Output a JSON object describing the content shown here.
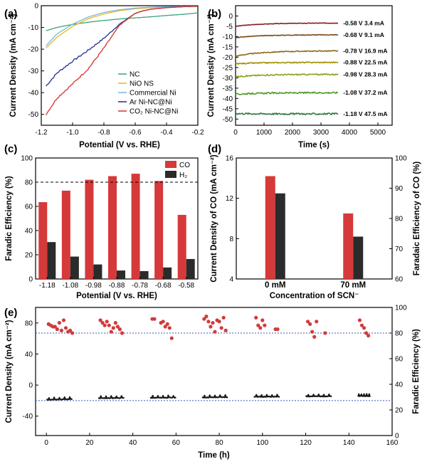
{
  "chart_data": [
    {
      "panel": "(a)",
      "type": "line",
      "xlabel": "Potential (V vs. RHE)",
      "ylabel": "Current Density (mA cm⁻²)",
      "xlim": [
        -1.2,
        -0.2
      ],
      "ylim": [
        -55,
        0
      ],
      "xticks": [
        "-1.2",
        "-1.0",
        "-0.8",
        "-0.6",
        "-0.4",
        "-0.2"
      ],
      "yticks": [
        "0",
        "-10",
        "-20",
        "-30",
        "-40",
        "-50"
      ],
      "legend_position": "bottom-right",
      "series": [
        {
          "name": "NC",
          "color": "#3aa37a",
          "x": [
            -1.17,
            -1.1,
            -1.0,
            -0.9,
            -0.8,
            -0.7,
            -0.6,
            -0.5,
            -0.4,
            -0.3,
            -0.2
          ],
          "y": [
            -11.5,
            -10.0,
            -8.6,
            -7.6,
            -6.8,
            -6.1,
            -5.6,
            -5.1,
            -4.5,
            -4.0,
            -3.3
          ]
        },
        {
          "name": "NiO NS",
          "color": "#e6b820",
          "x": [
            -1.17,
            -1.1,
            -1.0,
            -0.9,
            -0.8,
            -0.7,
            -0.6,
            -0.5,
            -0.4,
            -0.3,
            -0.2
          ],
          "y": [
            -19.5,
            -14.5,
            -9.5,
            -6.0,
            -3.8,
            -2.3,
            -1.4,
            -0.9,
            -0.6,
            -0.4,
            -0.3
          ]
        },
        {
          "name": "Commercial Ni",
          "color": "#7fb6d6",
          "x": [
            -1.17,
            -1.1,
            -1.0,
            -0.9,
            -0.8,
            -0.7,
            -0.6,
            -0.5,
            -0.4,
            -0.3,
            -0.2
          ],
          "y": [
            -18.5,
            -13.0,
            -8.5,
            -5.2,
            -3.1,
            -1.9,
            -1.1,
            -0.7,
            -0.4,
            -0.3,
            -0.2
          ]
        },
        {
          "name": "Ar Ni-NC@Ni",
          "color": "#1f2f8f",
          "x": [
            -1.17,
            -1.1,
            -1.0,
            -0.9,
            -0.8,
            -0.7,
            -0.6,
            -0.55,
            -0.5,
            -0.4,
            -0.3,
            -0.2
          ],
          "y": [
            -37.0,
            -31.0,
            -25.5,
            -20.5,
            -15.0,
            -8.5,
            -3.5,
            -2.4,
            -1.6,
            -0.9,
            -0.5,
            -0.3
          ]
        },
        {
          "name": "CO₂ Ni-NC@Ni",
          "color": "#d6312b",
          "x": [
            -1.17,
            -1.1,
            -1.0,
            -0.9,
            -0.8,
            -0.7,
            -0.6,
            -0.55,
            -0.5,
            -0.4,
            -0.3,
            -0.2
          ],
          "y": [
            -50.0,
            -42.5,
            -36.0,
            -29.0,
            -19.5,
            -9.0,
            -3.5,
            -2.3,
            -1.6,
            -0.9,
            -0.5,
            -0.3
          ]
        }
      ]
    },
    {
      "panel": "(b)",
      "type": "line",
      "xlabel": "Time (s)",
      "ylabel": "Current Density (mA cm⁻²)",
      "xlim": [
        0,
        5500
      ],
      "ylim": [
        -53,
        5
      ],
      "xticks": [
        "0",
        "1000",
        "2000",
        "3000",
        "4000",
        "5000"
      ],
      "yticks": [
        "0",
        "-5",
        "-10",
        "-15",
        "-20",
        "-25",
        "-30",
        "-35",
        "-40",
        "-45",
        "-50"
      ],
      "series": [
        {
          "name": "-0.58 V",
          "annotation": "-0.58 V  3.4 mA",
          "color": "#8a1c1c",
          "start": -5.0,
          "end": -3.4
        },
        {
          "name": "-0.68 V",
          "annotation": "-0.68 V  9.1 mA",
          "color": "#7a4a1e",
          "start": -10.5,
          "end": -9.1
        },
        {
          "name": "-0.78 V",
          "annotation": "-0.78 V  16.9 mA",
          "color": "#8a6a12",
          "start": -19.5,
          "end": -16.9
        },
        {
          "name": "-0.88 V",
          "annotation": "-0.88 V  22.5 mA",
          "color": "#a0900a",
          "start": -23.2,
          "end": -22.5
        },
        {
          "name": "-0.98 V",
          "annotation": "-0.98 V  28.3 mA",
          "color": "#8aa21e",
          "start": -29.5,
          "end": -28.3
        },
        {
          "name": "-1.08 V",
          "annotation": "-1.08 V  37.2 mA",
          "color": "#4f9a2a",
          "start": -38.0,
          "end": -37.2
        },
        {
          "name": "-1.18 V",
          "annotation": "-1.18 V  47.5 mA",
          "color": "#2e7a3e",
          "start": -47.3,
          "end": -47.5
        }
      ]
    },
    {
      "panel": "(c)",
      "type": "bar",
      "xlabel": "Potential (V vs. RHE)",
      "ylabel": "Faradic Efficiency (%)",
      "ylim": [
        0,
        100
      ],
      "yticks": [
        "0",
        "20",
        "40",
        "60",
        "80",
        "100"
      ],
      "categories": [
        "-1.18",
        "-1.08",
        "-0.98",
        "-0.88",
        "-0.78",
        "-0.68",
        "-0.58"
      ],
      "reference_line": 80,
      "legend_position": "top-right",
      "series": [
        {
          "name": "CO",
          "color": "#d6393a",
          "values": [
            63.5,
            73,
            82,
            85,
            87,
            81,
            53
          ]
        },
        {
          "name": "H₂",
          "color": "#2b2b2b",
          "values": [
            30.5,
            18.5,
            12,
            7,
            6.5,
            9.5,
            16.5
          ]
        }
      ]
    },
    {
      "panel": "(d)",
      "type": "bar",
      "xlabel": "Concentration of SCN⁻",
      "ylabel_left": "Current Density of CO (mA cm⁻²)",
      "ylabel_right": "Faradaic Efficiency of CO (%)",
      "ylim_left": [
        4,
        16
      ],
      "ylim_right": [
        60,
        100
      ],
      "yticks_left": [
        "4",
        "8",
        "12",
        "16"
      ],
      "yticks_right": [
        "60",
        "70",
        "80",
        "90",
        "100"
      ],
      "categories": [
        "0 mM",
        "70 mM"
      ],
      "series": [
        {
          "name": "Current Density of CO",
          "axis": "left",
          "color": "#d6393a",
          "values": [
            14.2,
            10.5
          ]
        },
        {
          "name": "Faradaic Efficiency of CO",
          "axis": "right",
          "color": "#2b2b2b",
          "values": [
            88.3,
            74.0
          ]
        }
      ]
    },
    {
      "panel": "(e)",
      "type": "scatter",
      "xlabel": "Time (h)",
      "ylabel_left": "Current Density (mA cm⁻²)",
      "ylabel_right": "Faradic Efficiency (%)",
      "xlim": [
        -5,
        160
      ],
      "ylim_left": [
        -65,
        100
      ],
      "ylim_right": [
        0,
        100
      ],
      "xticks": [
        "0",
        "20",
        "40",
        "60",
        "80",
        "100",
        "120",
        "140",
        "160"
      ],
      "yticks_left": [
        "-40",
        "0",
        "40",
        "80"
      ],
      "yticks_right": [
        "0",
        "20",
        "40",
        "60",
        "80",
        "100"
      ],
      "ref_line_left": -20,
      "ref_line_right": 80,
      "current_segments": [
        {
          "start_h": 0,
          "end_h": 12,
          "values": [
            -19,
            -18
          ]
        },
        {
          "start_h": 24,
          "end_h": 36,
          "values": [
            -17,
            -16.5
          ]
        },
        {
          "start_h": 48,
          "end_h": 60,
          "values": [
            -16.5,
            -16
          ]
        },
        {
          "start_h": 72,
          "end_h": 84,
          "values": [
            -16,
            -15.5
          ]
        },
        {
          "start_h": 96,
          "end_h": 108,
          "values": [
            -15,
            -15
          ]
        },
        {
          "start_h": 120,
          "end_h": 132,
          "values": [
            -14.5,
            -14.5
          ]
        },
        {
          "start_h": 144,
          "end_h": 150,
          "values": [
            -14,
            -14
          ]
        }
      ],
      "fe_points": {
        "color": "#d23b3b",
        "x": [
          1,
          2,
          3,
          4,
          5,
          6,
          7,
          8,
          9,
          10,
          11,
          12,
          25,
          26,
          27,
          28,
          29,
          30,
          31,
          32,
          33,
          34,
          35,
          49,
          50,
          53,
          54,
          55,
          56,
          57,
          58,
          73,
          74,
          75,
          76,
          77,
          78,
          79,
          80,
          81,
          82,
          83,
          97,
          98,
          99,
          100,
          101,
          106,
          107,
          121,
          122,
          123,
          124,
          125,
          129,
          145,
          146,
          147,
          148,
          149
        ],
        "y": [
          87,
          86,
          85,
          85,
          83,
          88,
          82,
          90,
          84,
          81,
          82,
          80,
          90,
          88,
          86,
          89,
          86,
          81,
          84,
          88,
          85,
          83,
          80,
          91,
          91,
          88,
          89,
          85,
          87,
          84,
          76,
          91,
          93,
          89,
          85,
          88,
          81,
          90,
          89,
          84,
          92,
          82,
          92,
          86,
          84,
          90,
          86,
          83,
          83,
          89,
          87,
          81,
          77,
          89,
          80,
          90,
          86,
          84,
          80,
          78
        ]
      }
    }
  ]
}
